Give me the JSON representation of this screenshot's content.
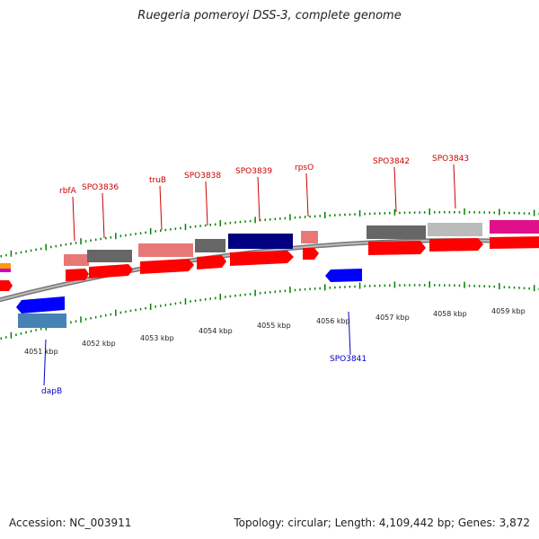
{
  "title": "Ruegeria pomeroyi DSS-3, complete genome",
  "footer": {
    "accession": "Accession: NC_003911",
    "summary": "Topology: circular; Length: 4,109,442 bp; Genes: 3,872"
  },
  "colors": {
    "label_red": "#cc0000",
    "label_blue": "#0000cc",
    "tick_green": "#008000",
    "backbone": "#888888"
  },
  "ruler": [
    {
      "label": "4051 kbp"
    },
    {
      "label": "4052 kbp"
    },
    {
      "label": "4053 kbp"
    },
    {
      "label": "4054 kbp"
    },
    {
      "label": "4055 kbp"
    },
    {
      "label": "4056 kbp"
    },
    {
      "label": "4057 kbp"
    },
    {
      "label": "4058 kbp"
    },
    {
      "label": "4059 kbp"
    }
  ],
  "gene_labels": [
    {
      "name": "rbfA",
      "strand": "forward"
    },
    {
      "name": "SPO3836",
      "strand": "forward"
    },
    {
      "name": "truB",
      "strand": "forward"
    },
    {
      "name": "SPO3838",
      "strand": "forward"
    },
    {
      "name": "SPO3839",
      "strand": "forward"
    },
    {
      "name": "rpsO",
      "strand": "forward"
    },
    {
      "name": "SPO3842",
      "strand": "forward"
    },
    {
      "name": "SPO3843",
      "strand": "forward"
    },
    {
      "name": "SPO3841",
      "strand": "reverse"
    },
    {
      "name": "dapB",
      "strand": "reverse"
    }
  ]
}
